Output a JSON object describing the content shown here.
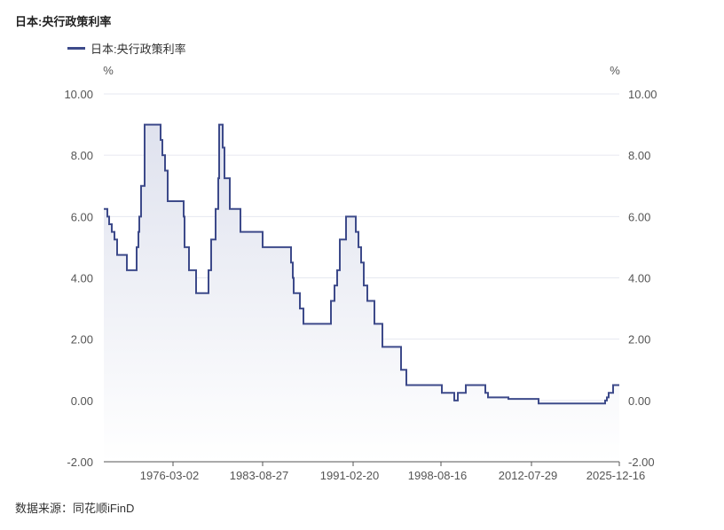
{
  "title": "日本:央行政策利率",
  "source": "数据来源：同花顺iFinD",
  "colors": {
    "line": "#3d4a8a",
    "fill_top": "#dfe2ee",
    "fill_bottom": "#ffffff",
    "grid": "#e6e8f0"
  },
  "chart_data": {
    "type": "line",
    "title": "日本:央行政策利率",
    "legend": [
      "日本:央行政策利率"
    ],
    "legend_position": "top-left",
    "ylabel_left": "%",
    "ylabel_right": "%",
    "ylim": [
      -2,
      10
    ],
    "yticks": [
      "-2.00",
      "0.00",
      "2.00",
      "4.00",
      "6.00",
      "8.00",
      "10.00"
    ],
    "ytick_values": [
      -2,
      0,
      2,
      4,
      6,
      8,
      10
    ],
    "x_index_range": [
      0,
      581
    ],
    "xticks": [
      {
        "index": 78,
        "label": "1976-03-02"
      },
      {
        "index": 179,
        "label": "1983-08-27"
      },
      {
        "index": 281,
        "label": "1991-02-20"
      },
      {
        "index": 380,
        "label": "1998-08-16"
      },
      {
        "index": 482,
        "label": "2012-07-29"
      },
      {
        "index": 581,
        "label": "2025-12-16"
      }
    ],
    "grid": true,
    "series": [
      {
        "name": "日本:央行政策利率",
        "step": true,
        "points": [
          [
            0,
            6.25
          ],
          [
            4,
            6.0
          ],
          [
            6,
            5.75
          ],
          [
            9,
            5.5
          ],
          [
            12,
            5.25
          ],
          [
            15,
            4.75
          ],
          [
            26,
            4.25
          ],
          [
            37,
            5.0
          ],
          [
            39,
            5.5
          ],
          [
            40,
            6.0
          ],
          [
            42,
            7.0
          ],
          [
            46,
            9.0
          ],
          [
            64,
            8.5
          ],
          [
            66,
            8.0
          ],
          [
            69,
            7.5
          ],
          [
            72,
            6.5
          ],
          [
            90,
            6.0
          ],
          [
            91,
            5.0
          ],
          [
            96,
            4.25
          ],
          [
            104,
            3.5
          ],
          [
            118,
            4.25
          ],
          [
            121,
            5.25
          ],
          [
            126,
            6.25
          ],
          [
            129,
            7.25
          ],
          [
            130,
            9.0
          ],
          [
            134,
            8.25
          ],
          [
            136,
            7.25
          ],
          [
            142,
            6.25
          ],
          [
            154,
            5.5
          ],
          [
            179,
            5.0
          ],
          [
            211,
            4.5
          ],
          [
            213,
            4.0
          ],
          [
            214,
            3.5
          ],
          [
            221,
            3.0
          ],
          [
            225,
            2.5
          ],
          [
            256,
            3.25
          ],
          [
            260,
            3.75
          ],
          [
            263,
            4.25
          ],
          [
            266,
            5.25
          ],
          [
            273,
            6.0
          ],
          [
            284,
            5.5
          ],
          [
            287,
            5.0
          ],
          [
            290,
            4.5
          ],
          [
            293,
            3.75
          ],
          [
            297,
            3.25
          ],
          [
            305,
            2.5
          ],
          [
            314,
            1.75
          ],
          [
            335,
            1.0
          ],
          [
            341,
            0.5
          ],
          [
            381,
            0.25
          ],
          [
            395,
            0.0
          ],
          [
            399,
            0.25
          ],
          [
            408,
            0.5
          ],
          [
            430,
            0.25
          ],
          [
            433,
            0.1
          ],
          [
            456,
            0.05
          ],
          [
            490,
            -0.1
          ],
          [
            565,
            0.0
          ],
          [
            567,
            0.1
          ],
          [
            569,
            0.25
          ],
          [
            574,
            0.5
          ],
          [
            581,
            0.5
          ]
        ]
      }
    ]
  }
}
